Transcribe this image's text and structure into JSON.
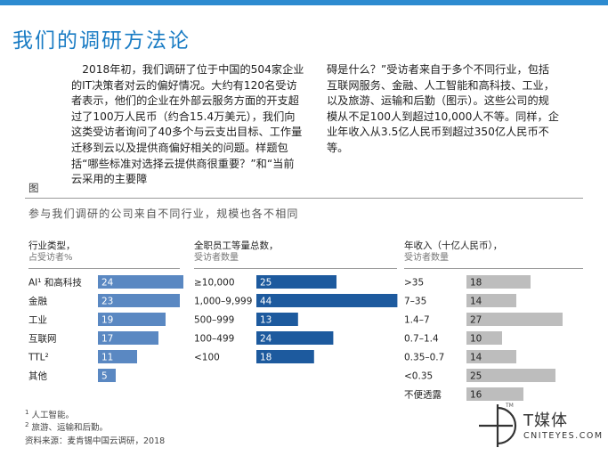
{
  "heading": "我们的调研方法论",
  "intro": {
    "left": "2018年初，我们调研了位于中国的504家企业的IT决策者对云的偏好情况。大约有120名受访者表示，他们的企业在外部云服务方面的开支超过了100万人民币（约合15.4万美元），我们向这类受访者询问了40多个与云支出目标、工作量迁移到云以及提供商偏好相关的问题。样题包括“哪些标准对选择云提供商很重要？”和“当前云采用的主要障",
    "right": "碍是什么？”受访者来自于多个不同行业，包括互联网服务、金融、人工智能和高科技、工业，以及旅游、运输和后勤（图示）。这些公司的规模从不足100人到超过10,000人不等。同样，企业年收入从3.5亿人民币到超过350亿人民币不等。"
  },
  "figure": {
    "label": "图",
    "caption": "参与我们调研的公司来自不同行业，规模也各不相同"
  },
  "chart_data": [
    {
      "type": "bar",
      "title": "行业类型，",
      "subtitle": "占受访者%",
      "categories": [
        "AI¹ 和高科技",
        "金融",
        "工业",
        "互联网",
        "TTL²",
        "其他"
      ],
      "values": [
        24,
        23,
        19,
        17,
        11,
        5
      ],
      "color": "#5a88c2"
    },
    {
      "type": "bar",
      "title": "全职员工等量总数，",
      "subtitle": "受访者数量",
      "categories": [
        "≥10,000",
        "1,000–9,999",
        "500–999",
        "100–499",
        "<100"
      ],
      "values": [
        25,
        44,
        13,
        24,
        18
      ],
      "color": "#1d5a9e"
    },
    {
      "type": "bar",
      "title": "年收入（十亿人民币），",
      "subtitle": "受访者数量",
      "categories": [
        ">35",
        "7–35",
        "1.4–7",
        "0.7–1.4",
        "0.35–0.7",
        "<0.35",
        "不便透露"
      ],
      "values": [
        18,
        14,
        27,
        10,
        14,
        25,
        16
      ],
      "color": "#bdbdbd"
    }
  ],
  "footnotes": {
    "note1_mark": "1",
    "note1": "人工智能。",
    "note2_mark": "2",
    "note2": "旅游、运输和后勤。",
    "source": "资料来源：麦肯锡中国云调研，2018"
  },
  "logo": {
    "name": "T媒体",
    "site": "CNITEYES.COM",
    "tm": "TM"
  }
}
